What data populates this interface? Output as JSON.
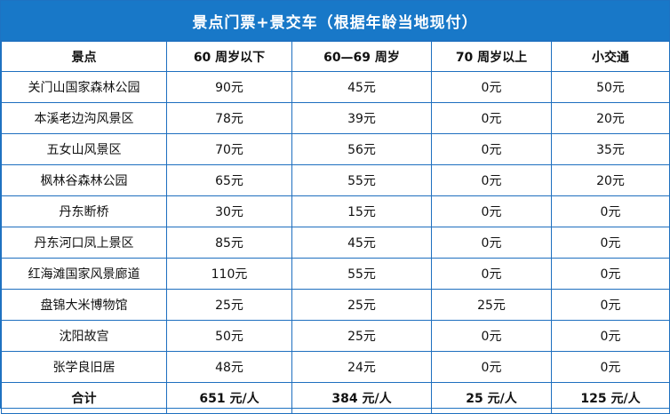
{
  "title": "景点门票+景交车（根据年龄当地现付）",
  "headers": [
    "景点",
    "60 周岁以下",
    "60—69 周岁",
    "70 周岁以上",
    "小交通"
  ],
  "rows": [
    [
      "关门山国家森林公园",
      "90元",
      "45元",
      "0元",
      "50元"
    ],
    [
      "本溪老边沟风景区",
      "78元",
      "39元",
      "0元",
      "20元"
    ],
    [
      "五女山风景区",
      "70元",
      "56元",
      "0元",
      "35元"
    ],
    [
      "枫林谷森林公园",
      "65元",
      "55元",
      "0元",
      "20元"
    ],
    [
      "丹东断桥",
      "30元",
      "15元",
      "0元",
      "0元"
    ],
    [
      "丹东河口凤上景区",
      "85元",
      "45元",
      "0元",
      "0元"
    ],
    [
      "红海滩国家风景廊道",
      "110元",
      "55元",
      "0元",
      "0元"
    ],
    [
      "盘锦大米博物馆",
      "25元",
      "25元",
      "25元",
      "0元"
    ],
    [
      "沈阳故宫",
      "50元",
      "25元",
      "0元",
      "0元"
    ],
    [
      "张学良旧居",
      "48元",
      "24元",
      "0元",
      "0元"
    ]
  ],
  "total": [
    "合计",
    "651 元/人",
    "384 元/人",
    "25 元/人",
    "125 元/人"
  ],
  "colors": {
    "title_bg": "#1878c8",
    "border": "#1e6fbf"
  }
}
